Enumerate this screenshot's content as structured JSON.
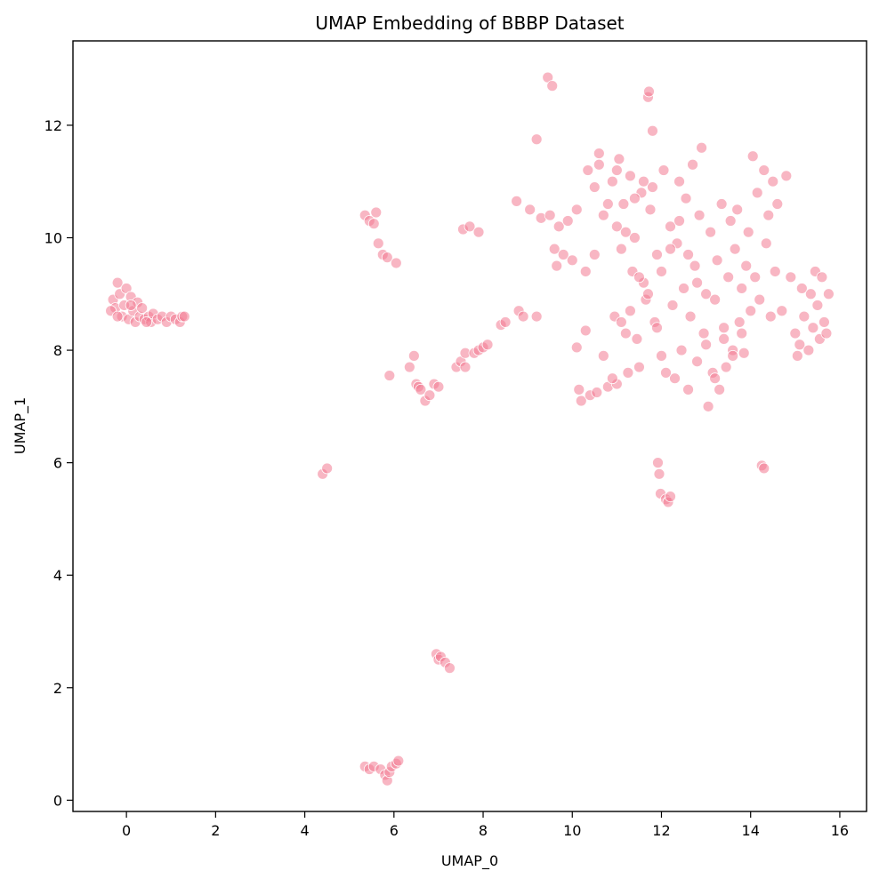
{
  "chart_data": {
    "type": "scatter",
    "title": "UMAP Embedding of BBBP Dataset",
    "xlabel": "UMAP_0",
    "ylabel": "UMAP_1",
    "xlim": [
      -1.2,
      16.6
    ],
    "ylim": [
      -0.2,
      13.5
    ],
    "xticks": [
      0,
      2,
      4,
      6,
      8,
      10,
      12,
      14,
      16
    ],
    "yticks": [
      0,
      2,
      4,
      6,
      8,
      10,
      12
    ],
    "grid": false,
    "legend": false,
    "marker_color": "#f27a92",
    "marker_edge_color": "#ffffff",
    "marker_alpha": 0.55,
    "points": [
      [
        -0.3,
        8.9
      ],
      [
        -0.25,
        8.75
      ],
      [
        -0.2,
        9.2
      ],
      [
        -0.15,
        9.0
      ],
      [
        -0.1,
        8.6
      ],
      [
        -0.05,
        8.8
      ],
      [
        0.0,
        9.1
      ],
      [
        0.05,
        8.55
      ],
      [
        0.1,
        8.95
      ],
      [
        0.15,
        8.7
      ],
      [
        0.2,
        8.5
      ],
      [
        0.25,
        8.85
      ],
      [
        0.3,
        8.6
      ],
      [
        0.35,
        8.75
      ],
      [
        0.4,
        8.55
      ],
      [
        0.5,
        8.6
      ],
      [
        0.55,
        8.5
      ],
      [
        0.6,
        8.65
      ],
      [
        0.7,
        8.55
      ],
      [
        0.8,
        8.6
      ],
      [
        0.9,
        8.5
      ],
      [
        1.0,
        8.6
      ],
      [
        1.1,
        8.55
      ],
      [
        1.2,
        8.5
      ],
      [
        1.25,
        8.6
      ],
      [
        1.3,
        8.6
      ],
      [
        -0.35,
        8.7
      ],
      [
        -0.2,
        8.6
      ],
      [
        0.1,
        8.8
      ],
      [
        0.45,
        8.5
      ],
      [
        4.4,
        5.8
      ],
      [
        4.5,
        5.9
      ],
      [
        5.35,
        0.6
      ],
      [
        5.45,
        0.55
      ],
      [
        5.55,
        0.6
      ],
      [
        5.7,
        0.55
      ],
      [
        5.8,
        0.45
      ],
      [
        5.85,
        0.35
      ],
      [
        5.9,
        0.5
      ],
      [
        5.95,
        0.6
      ],
      [
        6.05,
        0.65
      ],
      [
        6.1,
        0.7
      ],
      [
        6.95,
        2.6
      ],
      [
        7.0,
        2.5
      ],
      [
        7.05,
        2.55
      ],
      [
        7.15,
        2.45
      ],
      [
        7.25,
        2.35
      ],
      [
        5.35,
        10.4
      ],
      [
        5.45,
        10.3
      ],
      [
        5.55,
        10.25
      ],
      [
        5.6,
        10.45
      ],
      [
        5.65,
        9.9
      ],
      [
        5.75,
        9.7
      ],
      [
        5.85,
        9.65
      ],
      [
        6.05,
        9.55
      ],
      [
        5.9,
        7.55
      ],
      [
        6.35,
        7.7
      ],
      [
        6.45,
        7.9
      ],
      [
        6.5,
        7.4
      ],
      [
        6.55,
        7.35
      ],
      [
        6.6,
        7.3
      ],
      [
        6.7,
        7.1
      ],
      [
        6.8,
        7.2
      ],
      [
        6.9,
        7.4
      ],
      [
        7.0,
        7.35
      ],
      [
        7.4,
        7.7
      ],
      [
        7.5,
        7.8
      ],
      [
        7.6,
        7.7
      ],
      [
        7.6,
        7.95
      ],
      [
        7.55,
        10.15
      ],
      [
        7.7,
        10.2
      ],
      [
        7.9,
        10.1
      ],
      [
        7.8,
        7.95
      ],
      [
        7.9,
        8.0
      ],
      [
        8.0,
        8.05
      ],
      [
        8.1,
        8.1
      ],
      [
        8.4,
        8.45
      ],
      [
        8.5,
        8.5
      ],
      [
        8.75,
        10.65
      ],
      [
        8.8,
        8.7
      ],
      [
        8.9,
        8.6
      ],
      [
        9.05,
        10.5
      ],
      [
        9.2,
        11.75
      ],
      [
        9.2,
        8.6
      ],
      [
        9.3,
        10.35
      ],
      [
        9.45,
        12.85
      ],
      [
        9.55,
        12.7
      ],
      [
        9.5,
        10.4
      ],
      [
        9.6,
        9.8
      ],
      [
        9.65,
        9.5
      ],
      [
        9.7,
        10.2
      ],
      [
        9.8,
        9.7
      ],
      [
        9.9,
        10.3
      ],
      [
        10.0,
        9.6
      ],
      [
        10.1,
        10.5
      ],
      [
        10.1,
        8.05
      ],
      [
        10.15,
        7.3
      ],
      [
        10.2,
        7.1
      ],
      [
        10.3,
        8.35
      ],
      [
        10.35,
        11.2
      ],
      [
        10.4,
        7.2
      ],
      [
        10.5,
        10.9
      ],
      [
        10.55,
        7.25
      ],
      [
        10.6,
        11.3
      ],
      [
        10.7,
        10.4
      ],
      [
        10.8,
        7.35
      ],
      [
        10.9,
        11.0
      ],
      [
        10.95,
        8.6
      ],
      [
        11.0,
        10.2
      ],
      [
        11.0,
        7.4
      ],
      [
        11.05,
        11.4
      ],
      [
        11.1,
        9.8
      ],
      [
        11.15,
        10.6
      ],
      [
        11.2,
        8.3
      ],
      [
        11.25,
        7.6
      ],
      [
        11.3,
        11.1
      ],
      [
        11.35,
        9.4
      ],
      [
        11.4,
        10.0
      ],
      [
        11.45,
        8.2
      ],
      [
        11.5,
        7.7
      ],
      [
        11.55,
        10.8
      ],
      [
        11.6,
        9.2
      ],
      [
        11.65,
        8.9
      ],
      [
        11.7,
        12.5
      ],
      [
        11.72,
        12.6
      ],
      [
        11.75,
        10.5
      ],
      [
        11.8,
        11.9
      ],
      [
        11.85,
        8.5
      ],
      [
        11.9,
        9.7
      ],
      [
        11.92,
        6.0
      ],
      [
        11.95,
        5.8
      ],
      [
        11.98,
        5.45
      ],
      [
        12.0,
        7.9
      ],
      [
        12.05,
        11.2
      ],
      [
        12.1,
        5.35
      ],
      [
        12.15,
        5.3
      ],
      [
        12.2,
        5.4
      ],
      [
        12.2,
        10.2
      ],
      [
        12.25,
        8.8
      ],
      [
        12.3,
        7.5
      ],
      [
        12.35,
        9.9
      ],
      [
        12.4,
        11.0
      ],
      [
        12.45,
        8.0
      ],
      [
        12.5,
        9.1
      ],
      [
        12.55,
        10.7
      ],
      [
        12.6,
        7.3
      ],
      [
        12.65,
        8.6
      ],
      [
        12.7,
        11.3
      ],
      [
        12.75,
        9.5
      ],
      [
        12.8,
        7.8
      ],
      [
        12.85,
        10.4
      ],
      [
        12.9,
        11.6
      ],
      [
        12.95,
        8.3
      ],
      [
        13.0,
        9.0
      ],
      [
        13.05,
        7.0
      ],
      [
        13.1,
        10.1
      ],
      [
        13.15,
        7.6
      ],
      [
        13.2,
        8.9
      ],
      [
        13.25,
        9.6
      ],
      [
        13.3,
        7.3
      ],
      [
        13.35,
        10.6
      ],
      [
        13.4,
        8.4
      ],
      [
        13.45,
        7.7
      ],
      [
        13.5,
        9.3
      ],
      [
        13.55,
        10.3
      ],
      [
        13.6,
        8.0
      ],
      [
        13.65,
        9.8
      ],
      [
        13.7,
        10.5
      ],
      [
        13.75,
        8.5
      ],
      [
        13.8,
        9.1
      ],
      [
        13.85,
        7.95
      ],
      [
        13.9,
        9.5
      ],
      [
        13.95,
        10.1
      ],
      [
        14.0,
        8.7
      ],
      [
        14.05,
        11.45
      ],
      [
        14.1,
        9.3
      ],
      [
        14.15,
        10.8
      ],
      [
        14.2,
        8.9
      ],
      [
        14.25,
        5.95
      ],
      [
        14.3,
        5.9
      ],
      [
        14.3,
        11.2
      ],
      [
        14.35,
        9.9
      ],
      [
        14.4,
        10.4
      ],
      [
        14.45,
        8.6
      ],
      [
        14.5,
        11.0
      ],
      [
        14.55,
        9.4
      ],
      [
        14.6,
        10.6
      ],
      [
        14.7,
        8.7
      ],
      [
        14.8,
        11.1
      ],
      [
        14.9,
        9.3
      ],
      [
        15.0,
        8.3
      ],
      [
        15.05,
        7.9
      ],
      [
        15.1,
        8.1
      ],
      [
        15.15,
        9.1
      ],
      [
        15.2,
        8.6
      ],
      [
        15.3,
        8.0
      ],
      [
        15.35,
        9.0
      ],
      [
        15.4,
        8.4
      ],
      [
        15.45,
        9.4
      ],
      [
        15.5,
        8.8
      ],
      [
        15.55,
        8.2
      ],
      [
        15.6,
        9.3
      ],
      [
        15.65,
        8.5
      ],
      [
        15.7,
        8.3
      ],
      [
        15.75,
        9.0
      ],
      [
        10.6,
        11.5
      ],
      [
        10.8,
        10.6
      ],
      [
        11.0,
        11.2
      ],
      [
        11.2,
        10.1
      ],
      [
        11.4,
        10.7
      ],
      [
        11.6,
        11.0
      ],
      [
        11.8,
        10.9
      ],
      [
        12.0,
        9.4
      ],
      [
        12.2,
        9.8
      ],
      [
        12.4,
        10.3
      ],
      [
        12.6,
        9.7
      ],
      [
        12.8,
        9.2
      ],
      [
        13.0,
        8.1
      ],
      [
        13.2,
        7.5
      ],
      [
        13.4,
        8.2
      ],
      [
        13.6,
        7.9
      ],
      [
        13.8,
        8.3
      ],
      [
        12.1,
        7.6
      ],
      [
        11.9,
        8.4
      ],
      [
        11.7,
        9.0
      ],
      [
        11.5,
        9.3
      ],
      [
        11.3,
        8.7
      ],
      [
        11.1,
        8.5
      ],
      [
        10.9,
        7.5
      ],
      [
        10.7,
        7.9
      ],
      [
        10.5,
        9.7
      ],
      [
        10.3,
        9.4
      ]
    ]
  }
}
